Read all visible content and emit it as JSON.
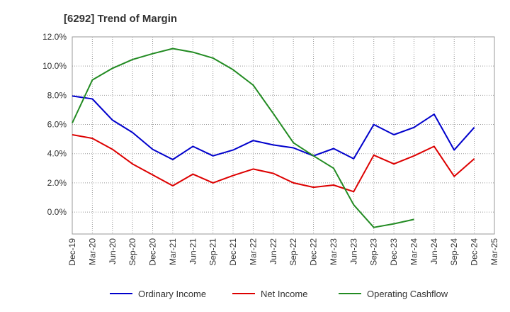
{
  "chart_data": {
    "type": "line",
    "title": "[6292]  Trend of Margin",
    "xlabel": "",
    "ylabel": "",
    "ylim": [
      -1.5,
      12.0
    ],
    "yticks": [
      0.0,
      2.0,
      4.0,
      6.0,
      8.0,
      10.0,
      12.0
    ],
    "ytick_labels": [
      "0.0%",
      "2.0%",
      "4.0%",
      "6.0%",
      "8.0%",
      "10.0%",
      "12.0%"
    ],
    "grid": true,
    "legend_position": "bottom",
    "x": [
      "Dec-19",
      "Mar-20",
      "Jun-20",
      "Sep-20",
      "Dec-20",
      "Mar-21",
      "Jun-21",
      "Sep-21",
      "Dec-21",
      "Mar-22",
      "Jun-22",
      "Sep-22",
      "Dec-22",
      "Mar-23",
      "Jun-23",
      "Sep-23",
      "Dec-23",
      "Mar-24",
      "Jun-24",
      "Sep-24",
      "Dec-24",
      "Mar-25"
    ],
    "series": [
      {
        "name": "Ordinary Income",
        "color": "#0000cc",
        "values": [
          7.95,
          7.75,
          6.3,
          5.45,
          4.3,
          3.6,
          4.5,
          3.85,
          4.25,
          4.9,
          4.6,
          4.4,
          3.85,
          4.35,
          3.65,
          6.0,
          5.3,
          5.8,
          6.7,
          4.25,
          5.8,
          null
        ]
      },
      {
        "name": "Net Income",
        "color": "#dd0000",
        "values": [
          5.3,
          5.05,
          4.3,
          3.3,
          2.55,
          1.8,
          2.6,
          2.0,
          2.5,
          2.95,
          2.65,
          2.0,
          1.7,
          1.85,
          1.4,
          3.9,
          3.3,
          3.85,
          4.5,
          2.45,
          3.65,
          null
        ]
      },
      {
        "name": "Operating Cashflow",
        "color": "#228b22",
        "values": [
          6.1,
          9.05,
          9.85,
          10.45,
          10.85,
          11.2,
          10.95,
          10.55,
          9.75,
          8.7,
          6.75,
          4.75,
          3.85,
          3.0,
          0.5,
          -1.05,
          -0.8,
          -0.5,
          null,
          null,
          null,
          null
        ]
      }
    ]
  }
}
